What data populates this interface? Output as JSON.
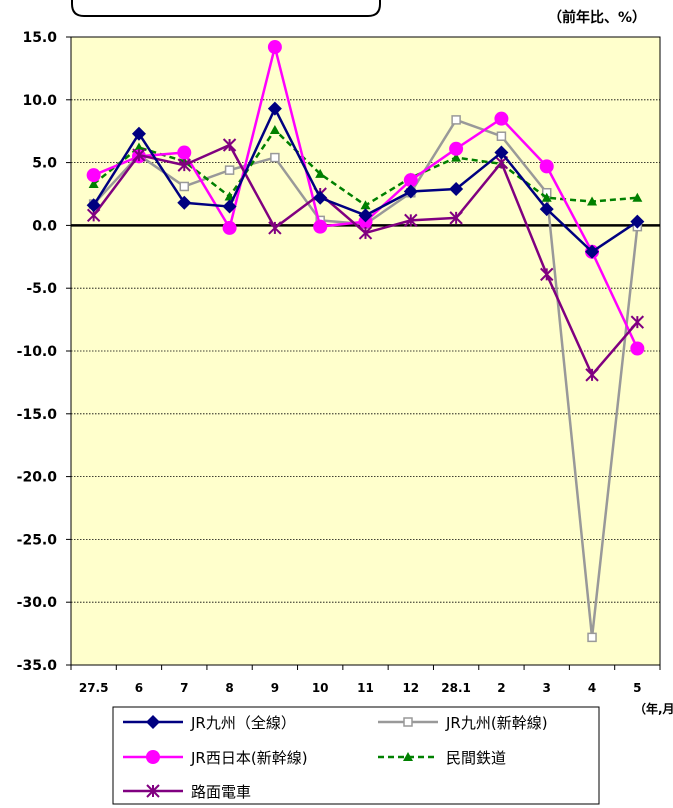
{
  "chart_data": {
    "type": "line",
    "unit_label": "（前年比、%）",
    "x_unit_label": "（年,月）",
    "categories": [
      "27.5",
      "6",
      "7",
      "8",
      "9",
      "10",
      "11",
      "12",
      "28.1",
      "2",
      "3",
      "4",
      "5"
    ],
    "ylim": [
      -35,
      15
    ],
    "yticks": [
      "15.0",
      "10.0",
      "5.0",
      "0.0",
      "-5.0",
      "-10.0",
      "-15.0",
      "-20.0",
      "-25.0",
      "-30.0",
      "-35.0"
    ],
    "grid": true,
    "legend_position": "bottom",
    "series": [
      {
        "name": "JR九州（全線）",
        "color": "#000080",
        "marker": "diamond",
        "dash": false,
        "values": [
          1.6,
          7.3,
          1.8,
          1.5,
          9.3,
          2.2,
          0.8,
          2.7,
          2.9,
          5.8,
          1.3,
          -2.1,
          0.3
        ]
      },
      {
        "name": "JR九州(新幹線)",
        "color": "#999999",
        "marker": "square-open",
        "dash": false,
        "values": [
          1.7,
          5.6,
          3.1,
          4.4,
          5.4,
          0.4,
          0.1,
          2.6,
          8.4,
          7.1,
          2.6,
          -32.8,
          -0.1
        ]
      },
      {
        "name": "JR西日本(新幹線)",
        "color": "#ff00ff",
        "marker": "circle",
        "dash": false,
        "values": [
          4.0,
          5.5,
          5.8,
          -0.2,
          14.2,
          -0.1,
          0.3,
          3.6,
          6.1,
          8.5,
          4.7,
          -2.1,
          -9.8
        ]
      },
      {
        "name": "民間鉄道",
        "color": "#008000",
        "marker": "triangle",
        "dash": true,
        "values": [
          3.3,
          6.2,
          5.1,
          2.3,
          7.6,
          4.1,
          1.6,
          3.8,
          5.4,
          4.9,
          2.2,
          1.9,
          2.2
        ]
      },
      {
        "name": "路面電車",
        "color": "#800080",
        "marker": "asterisk",
        "dash": false,
        "values": [
          0.8,
          5.6,
          4.8,
          6.4,
          -0.2,
          2.5,
          -0.6,
          0.4,
          0.6,
          5.0,
          -3.9,
          -11.9,
          -7.7
        ]
      }
    ]
  }
}
